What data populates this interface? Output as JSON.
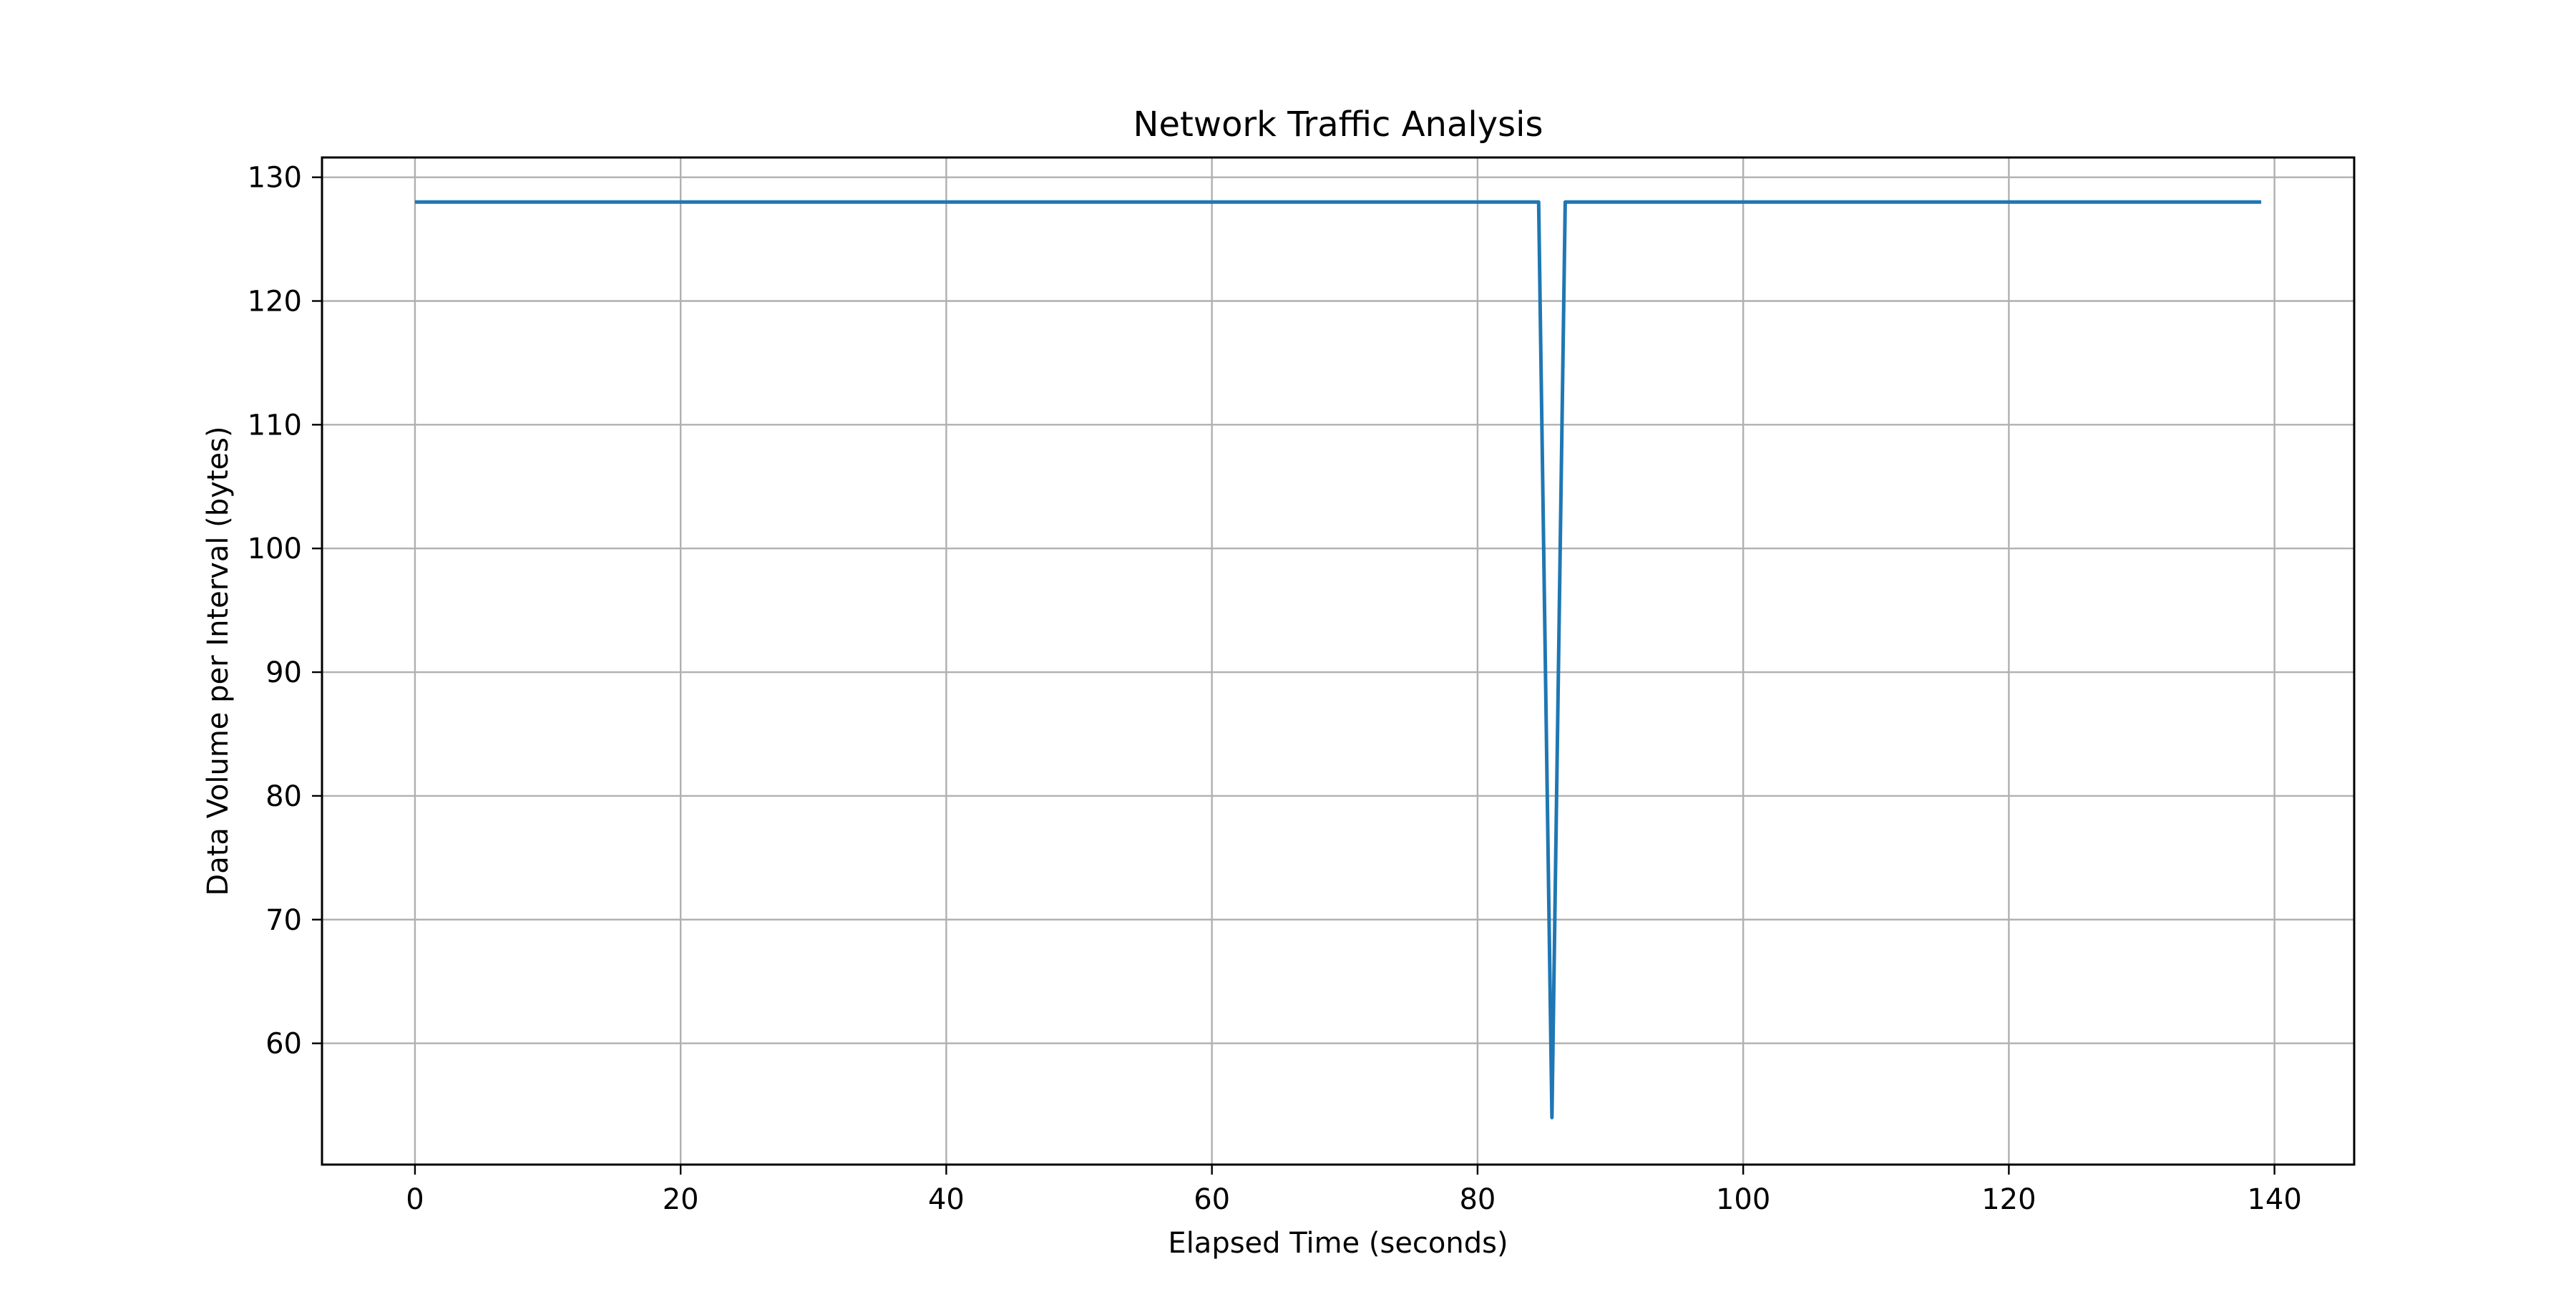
{
  "chart_data": {
    "type": "line",
    "title": "Network Traffic Analysis",
    "xlabel": "Elapsed Time (seconds)",
    "ylabel": "Data Volume per Interval (bytes)",
    "xlim": [
      -7,
      146
    ],
    "ylim": [
      50.2,
      131.6
    ],
    "xticks": [
      0,
      20,
      40,
      60,
      80,
      100,
      120,
      140
    ],
    "yticks": [
      60,
      70,
      80,
      90,
      100,
      110,
      120,
      130
    ],
    "grid": true,
    "series": [
      {
        "color": "#1f77b4",
        "points": [
          [
            0,
            128
          ],
          [
            84.6,
            128
          ],
          [
            85.6,
            54
          ],
          [
            86.6,
            128
          ],
          [
            139,
            128
          ]
        ]
      }
    ]
  }
}
